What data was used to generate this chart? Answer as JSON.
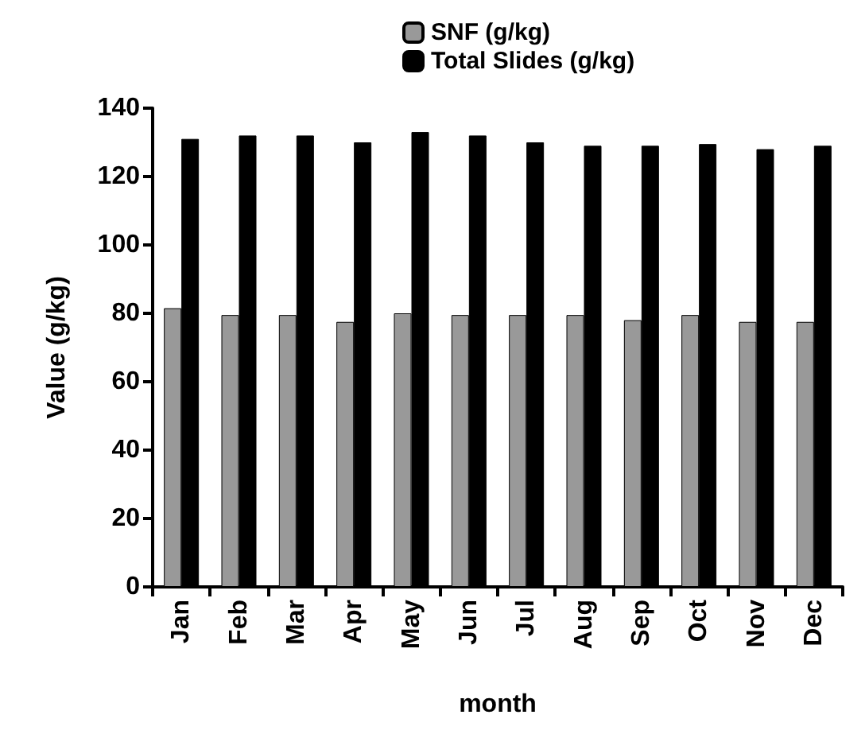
{
  "chart_data": {
    "type": "bar",
    "xlabel": "month",
    "ylabel": "Value (g/kg)",
    "categories": [
      "Jan",
      "Feb",
      "Mar",
      "Apr",
      "May",
      "Jun",
      "Jul",
      "Aug",
      "Sep",
      "Oct",
      "Nov",
      "Dec"
    ],
    "series": [
      {
        "name": "SNF (g/kg)",
        "color": "#999999",
        "values": [
          81.5,
          79.5,
          79.5,
          77.5,
          80,
          79.5,
          79.5,
          79.5,
          78,
          79.5,
          77.5,
          77.5
        ]
      },
      {
        "name": "Total Slides (g/kg)",
        "color": "#000000",
        "values": [
          131,
          132,
          132,
          130,
          133,
          132,
          130,
          129,
          129,
          129.5,
          128,
          129
        ]
      }
    ],
    "ylim": [
      0,
      140
    ],
    "yticks": [
      0,
      20,
      40,
      60,
      80,
      100,
      120,
      140
    ],
    "grid": false,
    "legend": "top"
  }
}
